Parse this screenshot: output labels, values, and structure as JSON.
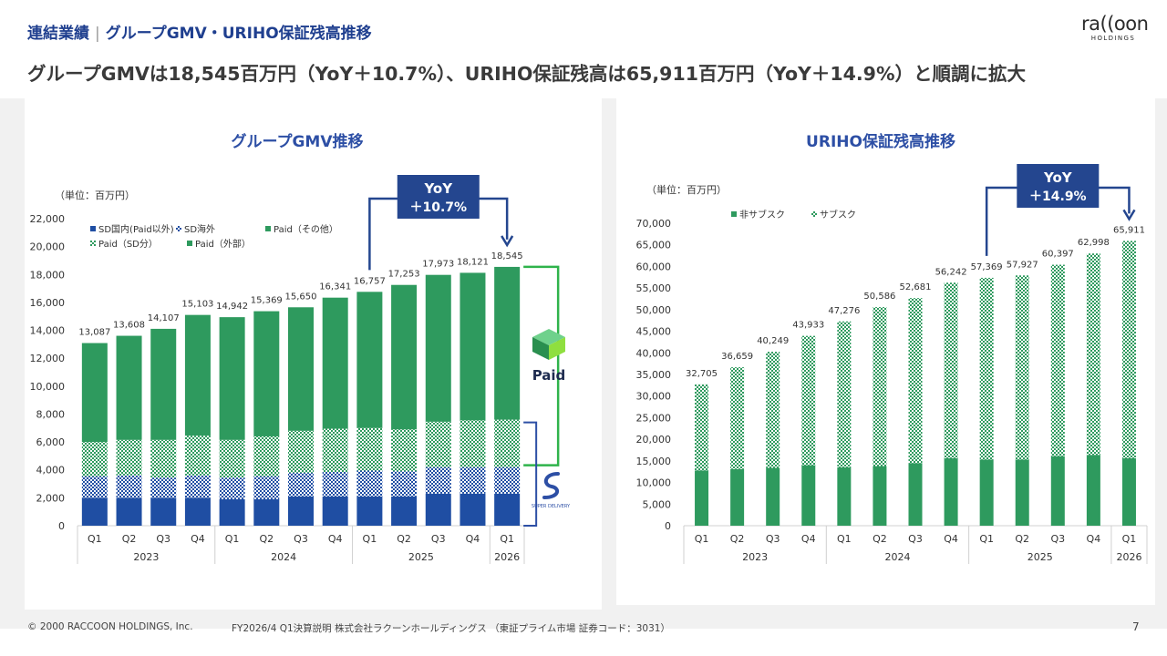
{
  "header": {
    "section": "連結業績",
    "separator": "|",
    "section_sub": "グループGMV・URIHO保証残高推移",
    "logo_word": "ra((oon",
    "logo_sub": "HOLDINGS",
    "headline": "グループGMVは18,545百万円（YoY＋10.7%）、URIHO保証残高は65,911百万円（YoY＋14.9%）と順調に拡大"
  },
  "colors": {
    "navy": "#1f4ea3",
    "green": "#2e9a5e",
    "title_blue": "#2d4fa5",
    "yoy_box": "#24468f"
  },
  "chart_data": [
    {
      "type": "bar",
      "stacked": true,
      "title": "グループGMV推移",
      "unit": "（単位：百万円）",
      "categories": [
        "Q1",
        "Q2",
        "Q3",
        "Q4",
        "Q1",
        "Q2",
        "Q3",
        "Q4",
        "Q1",
        "Q2",
        "Q3",
        "Q4",
        "Q1"
      ],
      "year_groups": [
        {
          "label": "2023",
          "count": 4
        },
        {
          "label": "2024",
          "count": 4
        },
        {
          "label": "2025",
          "count": 4
        },
        {
          "label": "2026",
          "count": 1
        }
      ],
      "series": [
        {
          "name": "SD国内(Paid以外)",
          "pattern": "solid",
          "color": "#1f4ea3",
          "values": [
            2000,
            2000,
            2000,
            2000,
            1900,
            1900,
            2100,
            2100,
            2100,
            2100,
            2300,
            2300,
            2300
          ]
        },
        {
          "name": "SD海外",
          "pattern": "dots",
          "color": "#1f4ea3",
          "values": [
            1550,
            1600,
            1450,
            1600,
            1550,
            1650,
            1700,
            1750,
            1850,
            1800,
            1900,
            1900,
            1900
          ]
        },
        {
          "name": "Paid（SD分）",
          "pattern": "dots",
          "color": "#2e9a5e",
          "values": [
            2450,
            2550,
            2700,
            2850,
            2700,
            2850,
            3000,
            3100,
            3050,
            3000,
            3250,
            3350,
            3400
          ]
        },
        {
          "name": "Paid（その他）",
          "pattern": "solid",
          "color": "#2e9a5e",
          "values": [
            7087,
            7458,
            7957,
            8653,
            8792,
            8969,
            8850,
            9391,
            9757,
            10353,
            10523,
            10571,
            10945
          ]
        },
        {
          "name": "Paid（外部）",
          "pattern": "solid",
          "color": "#2e9a5e",
          "values": [
            0,
            0,
            0,
            0,
            0,
            0,
            0,
            0,
            0,
            0,
            0,
            0,
            0
          ]
        }
      ],
      "totals": [
        13087,
        13608,
        14107,
        15103,
        14942,
        15369,
        15650,
        16341,
        16757,
        17253,
        17973,
        18121,
        18545
      ],
      "total_labels": [
        "13,087",
        "13,608",
        "14,107",
        "15,103",
        "14,942",
        "15,369",
        "15,650",
        "16,341",
        "16,757",
        "17,253",
        "17,973",
        "18,121",
        "18,545"
      ],
      "ylim": [
        0,
        22000
      ],
      "yticks": [
        0,
        2000,
        4000,
        6000,
        8000,
        10000,
        12000,
        14000,
        16000,
        18000,
        20000,
        22000
      ],
      "ytick_labels": [
        "0",
        "2,000",
        "4,000",
        "6,000",
        "8,000",
        "10,000",
        "12,000",
        "14,000",
        "16,000",
        "18,000",
        "20,000",
        "22,000"
      ],
      "yoy": {
        "line1": "YoY",
        "line2": "＋10.7%",
        "from_index": 8,
        "to_index": 12
      },
      "brands": {
        "paid": "Paid",
        "sd": "SUPER DELIVERY"
      },
      "legend": "top-left",
      "grid": false
    },
    {
      "type": "bar",
      "stacked": true,
      "title": "URIHO保証残高推移",
      "unit": "（単位：百万円）",
      "categories": [
        "Q1",
        "Q2",
        "Q3",
        "Q4",
        "Q1",
        "Q2",
        "Q3",
        "Q4",
        "Q1",
        "Q2",
        "Q3",
        "Q4",
        "Q1"
      ],
      "year_groups": [
        {
          "label": "2023",
          "count": 4
        },
        {
          "label": "2024",
          "count": 4
        },
        {
          "label": "2025",
          "count": 4
        },
        {
          "label": "2026",
          "count": 1
        }
      ],
      "series": [
        {
          "name": "非サブスク",
          "pattern": "solid",
          "color": "#2e9a5e",
          "values": [
            12800,
            13100,
            13400,
            14000,
            13500,
            13800,
            14500,
            15600,
            15300,
            15300,
            16100,
            16400,
            15600
          ]
        },
        {
          "name": "サブスク",
          "pattern": "dots",
          "color": "#2e9a5e",
          "values": [
            19905,
            23559,
            26849,
            29933,
            33776,
            36786,
            38181,
            40642,
            42069,
            42627,
            44297,
            46598,
            50311
          ]
        }
      ],
      "totals": [
        32705,
        36659,
        40249,
        43933,
        47276,
        50586,
        52681,
        56242,
        57369,
        57927,
        60397,
        62998,
        65911
      ],
      "total_labels": [
        "32,705",
        "36,659",
        "40,249",
        "43,933",
        "47,276",
        "50,586",
        "52,681",
        "56,242",
        "57,369",
        "57,927",
        "60,397",
        "62,998",
        "65,911"
      ],
      "ylim": [
        0,
        70000
      ],
      "yticks": [
        0,
        5000,
        10000,
        15000,
        20000,
        25000,
        30000,
        35000,
        40000,
        45000,
        50000,
        55000,
        60000,
        65000,
        70000
      ],
      "ytick_labels": [
        "0",
        "5,000",
        "10,000",
        "15,000",
        "20,000",
        "25,000",
        "30,000",
        "35,000",
        "40,000",
        "45,000",
        "50,000",
        "55,000",
        "60,000",
        "65,000",
        "70,000"
      ],
      "yoy": {
        "line1": "YoY",
        "line2": "＋14.9%",
        "from_index": 8,
        "to_index": 12
      },
      "legend": "top-left",
      "grid": false
    }
  ],
  "footer": {
    "copyright": "© 2000 RACCOON HOLDINGS, Inc.",
    "doc": "FY2026/4 Q1決算説明 株式会社ラクーンホールディングス （東証プライム市場 証券コード：3031）",
    "page": "7"
  }
}
